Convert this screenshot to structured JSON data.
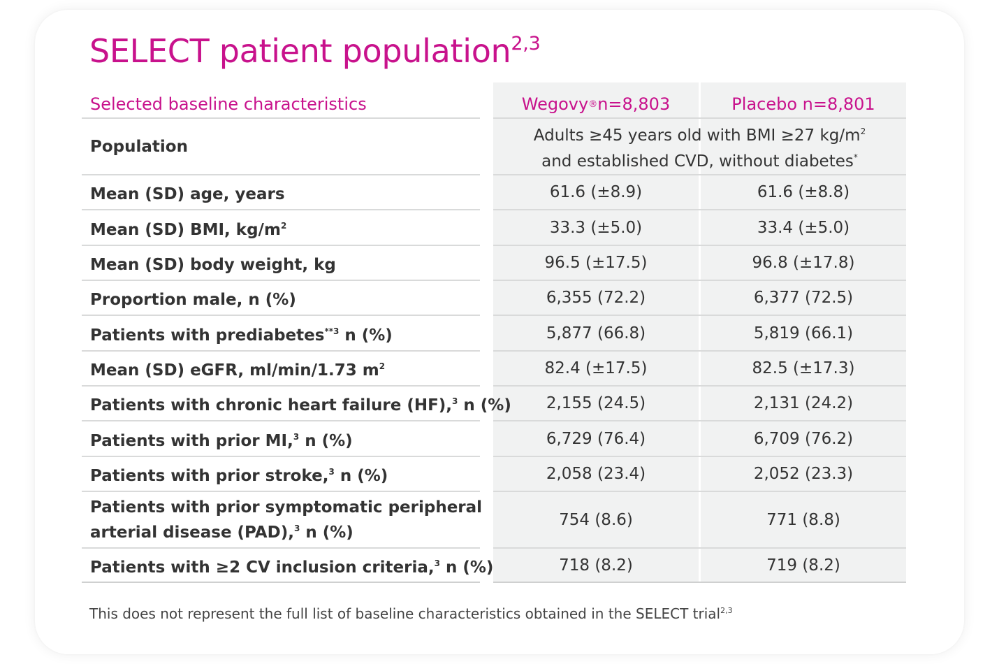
{
  "title": {
    "text": "SELECT patient population",
    "refs": "2,3"
  },
  "header": {
    "label": "Selected baseline characteristics",
    "col1": {
      "name": "Wegovy",
      "mark": "®",
      "n": " n=8,803"
    },
    "col2": "Placebo n=8,801"
  },
  "population": {
    "label": "Population",
    "line1": "Adults ≥45 years old with BMI ≥27 kg/m",
    "line1_sup": "2",
    "line2": "and established CVD, without diabetes",
    "line2_sup": "*"
  },
  "rows": [
    {
      "label": "Mean (SD) age, years",
      "sup": "",
      "suffix": "",
      "wegovy": "61.6 (±8.9)",
      "placebo": "61.6 (±8.8)"
    },
    {
      "label": "Mean (SD) BMI, kg/m",
      "sup": "2",
      "suffix": "",
      "wegovy": "33.3 (±5.0)",
      "placebo": "33.4 (±5.0)"
    },
    {
      "label": "Mean (SD) body weight, kg",
      "sup": "",
      "suffix": "",
      "wegovy": "96.5 (±17.5)",
      "placebo": "96.8 (±17.8)"
    },
    {
      "label": "Proportion male, n (%)",
      "sup": "",
      "suffix": "",
      "wegovy": "6,355 (72.2)",
      "placebo": "6,377 (72.5)"
    },
    {
      "label": "Patients with prediabetes",
      "sup": "**3",
      "suffix": " n (%)",
      "wegovy": "5,877 (66.8)",
      "placebo": "5,819 (66.1)"
    },
    {
      "label": "Mean (SD) eGFR, ml/min/1.73 m",
      "sup": "2",
      "suffix": "",
      "wegovy": "82.4 (±17.5)",
      "placebo": "82.5 (±17.3)"
    },
    {
      "label": "Patients with chronic heart failure (HF),",
      "sup": "3",
      "suffix": " n (%)",
      "wegovy": "2,155 (24.5)",
      "placebo": "2,131 (24.2)"
    },
    {
      "label": "Patients with prior MI,",
      "sup": "3",
      "suffix": " n (%)",
      "wegovy": "6,729 (76.4)",
      "placebo": "6,709 (76.2)"
    },
    {
      "label": "Patients with prior stroke,",
      "sup": "3",
      "suffix": " n (%)",
      "wegovy": "2,058 (23.4)",
      "placebo": "2,052 (23.3)"
    },
    {
      "label": "Patients with prior symptomatic peripheral",
      "label2": "arterial disease (PAD),",
      "sup": "3",
      "suffix": " n (%)",
      "wegovy": "754 (8.6)",
      "placebo": "771 (8.8)"
    },
    {
      "label": "Patients with ≥2 CV inclusion criteria,",
      "sup": "3",
      "suffix": " n (%)",
      "wegovy": "718 (8.2)",
      "placebo": "719 (8.2)"
    }
  ],
  "footnote": {
    "text": "This does not represent the full list of baseline characteristics obtained in the SELECT trial",
    "refs": "2,3"
  }
}
